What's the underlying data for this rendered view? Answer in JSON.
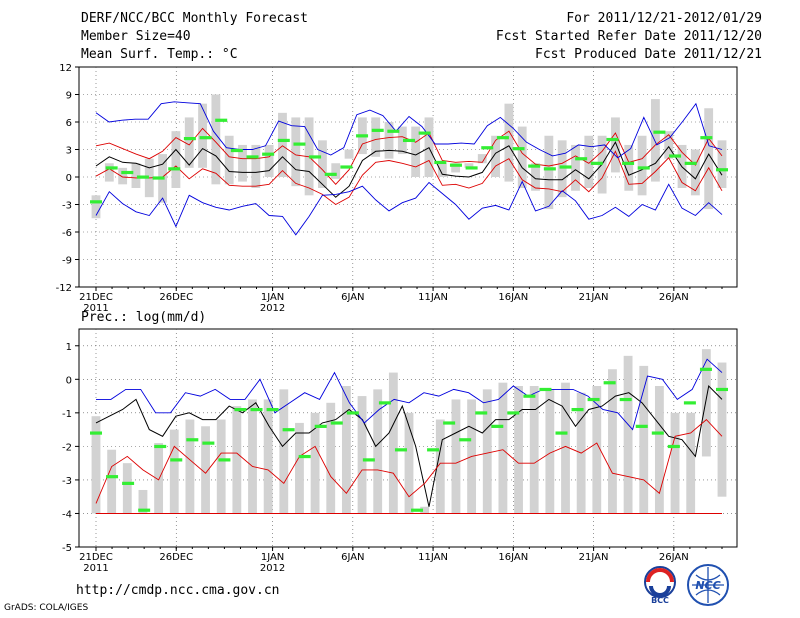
{
  "header": {
    "left_line1": "DERF/NCC/BCC Monthly Forecast",
    "left_line2": "Member Size=40",
    "left_line3": "Mean Surf. Temp.: °C",
    "right_line1": "For 2011/12/21-2012/01/29",
    "right_line2": "Fcst Started Refer Date 2011/12/20",
    "right_line3": "Fcst Produced Date 2011/12/21"
  },
  "panel2_title": "Prec.: log(mm/d)",
  "footer": {
    "url": "http://cmdp.ncc.cma.gov.cn",
    "credit": "GrADS: COLA/IGES"
  },
  "logos": {
    "bcc": "BCC",
    "ncc": "NCC"
  },
  "colors": {
    "box": "#d2d2d2",
    "median": "#33ee33",
    "mean": "#000000",
    "inner": "#dd0000",
    "outer": "#0000dd",
    "grid": "#555555"
  },
  "chart_data": [
    {
      "type": "line",
      "title": "Mean Surf. Temp.: °C",
      "ylim": [
        -12,
        12
      ],
      "yticks": [
        "12",
        "9",
        "6",
        "3",
        "0",
        "-3",
        "-6",
        "-9",
        "-12"
      ],
      "xticks": [
        {
          "label": "21DEC",
          "sub": "2011",
          "day": 0
        },
        {
          "label": "26DEC",
          "sub": "",
          "day": 5
        },
        {
          "label": "1JAN",
          "sub": "2012",
          "day": 11
        },
        {
          "label": "6JAN",
          "sub": "",
          "day": 16
        },
        {
          "label": "11JAN",
          "sub": "",
          "day": 21
        },
        {
          "label": "16JAN",
          "sub": "",
          "day": 26
        },
        {
          "label": "21JAN",
          "sub": "",
          "day": 31
        },
        {
          "label": "26JAN",
          "sub": "",
          "day": 36
        }
      ],
      "days": 40,
      "box_low": [
        -4.5,
        -0.5,
        -0.8,
        -1.2,
        -2.2,
        -2.8,
        -1.2,
        1.0,
        1.0,
        -0.8,
        -0.8,
        -0.5,
        -1.2,
        0.0,
        0.0,
        -1.0,
        -2.0,
        -1.2,
        -0.2,
        2.0,
        2.5,
        2.2,
        2.0,
        2.5,
        0.0,
        0.0,
        0.0,
        0.5,
        1.0,
        1.5,
        0.0,
        -0.5,
        -1.2,
        -1.5,
        -3.5,
        -2.2,
        -1.5,
        -1.2,
        -1.8,
        0.5,
        -1.5,
        -2.0,
        -0.5,
        2.0,
        -1.2,
        -2.0,
        -3.5,
        -1.2
      ],
      "box_high": [
        -2.0,
        1.5,
        1.0,
        1.5,
        2.0,
        2.5,
        5.0,
        6.5,
        8.0,
        9.0,
        4.5,
        3.5,
        3.5,
        3.5,
        7.0,
        6.5,
        6.5,
        4.0,
        1.5,
        3.0,
        6.5,
        6.5,
        6.0,
        5.5,
        5.5,
        6.5,
        1.5,
        1.5,
        1.5,
        2.5,
        4.5,
        8.0,
        5.5,
        1.5,
        4.5,
        4.0,
        3.5,
        4.5,
        4.5,
        6.5,
        3.5,
        4.5,
        8.5,
        5.0,
        3.5,
        3.0,
        7.5,
        4.0
      ],
      "series": [
        {
          "name": "median",
          "values": [
            -2.7,
            1.0,
            0.5,
            0.0,
            -0.1,
            0.9,
            4.2,
            4.3,
            6.2,
            2.9,
            2.2,
            2.5,
            4.0,
            3.6,
            2.2,
            0.3,
            1.1,
            4.5,
            5.1,
            5.0,
            4.0,
            4.8,
            1.6,
            1.3,
            1.0,
            3.2,
            4.3,
            3.1,
            1.2,
            0.9,
            1.1,
            2.0,
            1.5,
            4.1,
            1.5,
            1.0,
            4.9,
            2.3,
            1.5,
            4.3,
            0.8
          ]
        },
        {
          "name": "mean",
          "values": [
            1.2,
            2.2,
            1.6,
            1.5,
            1.0,
            1.4,
            3.0,
            1.3,
            3.1,
            2.3,
            0.6,
            0.5,
            0.5,
            0.7,
            2.2,
            0.8,
            0.6,
            -0.8,
            -2.2,
            -1.0,
            1.8,
            2.8,
            2.9,
            2.8,
            2.4,
            3.2,
            0.3,
            0.1,
            0.0,
            0.5,
            2.6,
            3.4,
            1.0,
            -0.2,
            -0.3,
            -0.3,
            0.8,
            -0.2,
            1.4,
            3.8,
            0.2,
            0.8,
            1.5,
            3.3,
            1.1,
            -0.2,
            2.5,
            0.2
          ]
        },
        {
          "name": "inner_upper",
          "values": [
            3.4,
            3.7,
            3.1,
            2.5,
            2.0,
            2.8,
            4.3,
            3.5,
            5.3,
            3.8,
            2.2,
            2.0,
            2.0,
            2.2,
            3.4,
            2.4,
            2.2,
            0.8,
            -0.8,
            0.8,
            3.6,
            4.1,
            4.3,
            4.4,
            3.8,
            4.8,
            1.8,
            1.6,
            1.7,
            1.6,
            4.0,
            5.0,
            2.6,
            1.4,
            1.2,
            1.5,
            2.3,
            1.5,
            2.8,
            4.8,
            1.6,
            2.0,
            3.5,
            4.6,
            2.7,
            1.3,
            4.2,
            2.3
          ]
        },
        {
          "name": "inner_lower",
          "values": [
            0.1,
            0.9,
            0.0,
            -0.1,
            -0.1,
            0.0,
            1.2,
            -0.2,
            0.9,
            0.4,
            -0.9,
            -1.0,
            -1.0,
            -0.8,
            0.7,
            -0.7,
            -1.2,
            -1.9,
            -3.0,
            -2.2,
            0.2,
            1.6,
            1.8,
            1.5,
            1.1,
            1.8,
            -0.9,
            -0.8,
            -1.2,
            -0.7,
            1.2,
            2.0,
            -0.3,
            -1.2,
            -1.3,
            -1.6,
            -0.3,
            -1.6,
            -0.1,
            2.8,
            -0.8,
            -0.7,
            0.6,
            2.1,
            -0.6,
            -1.5,
            1.0,
            -1.5
          ]
        },
        {
          "name": "outer_upper",
          "values": [
            7.0,
            6.0,
            6.2,
            6.3,
            6.3,
            8.0,
            8.2,
            8.1,
            8.0,
            5.0,
            3.2,
            3.0,
            3.0,
            3.4,
            6.1,
            5.6,
            5.5,
            3.0,
            2.4,
            3.2,
            6.8,
            7.3,
            6.7,
            5.0,
            6.6,
            5.5,
            3.6,
            3.6,
            3.7,
            3.6,
            5.6,
            6.5,
            5.3,
            3.8,
            3.0,
            2.3,
            2.6,
            3.5,
            3.3,
            3.5,
            2.1,
            3.1,
            6.5,
            3.5,
            4.3,
            6.1,
            8.0,
            3.4,
            3.0
          ]
        },
        {
          "name": "outer_lower",
          "values": [
            -4.2,
            -1.6,
            -2.9,
            -3.8,
            -4.2,
            -2.3,
            -5.4,
            -2.0,
            -2.8,
            -3.3,
            -3.6,
            -3.2,
            -2.9,
            -4.2,
            -4.3,
            -6.3,
            -4.3,
            -2.0,
            -1.9,
            -1.6,
            -1.0,
            -2.5,
            -3.7,
            -2.8,
            -2.3,
            -0.6,
            -1.8,
            -3.0,
            -4.6,
            -3.4,
            -3.1,
            -3.6,
            -0.5,
            -3.7,
            -3.2,
            -1.5,
            -2.6,
            -4.6,
            -4.2,
            -3.3,
            -4.3,
            -3.0,
            -3.6,
            -0.8,
            -3.4,
            -4.2,
            -2.8,
            -4.1
          ]
        }
      ]
    },
    {
      "type": "line",
      "title": "Prec.: log(mm/d)",
      "ylim": [
        -5,
        1.5
      ],
      "yticks": [
        "1",
        "0",
        "-1",
        "-2",
        "-3",
        "-4",
        "-5"
      ],
      "xticks": [
        {
          "label": "21DEC",
          "sub": "2011",
          "day": 0
        },
        {
          "label": "26DEC",
          "sub": "",
          "day": 5
        },
        {
          "label": "1JAN",
          "sub": "2012",
          "day": 11
        },
        {
          "label": "6JAN",
          "sub": "",
          "day": 16
        },
        {
          "label": "11JAN",
          "sub": "",
          "day": 21
        },
        {
          "label": "16JAN",
          "sub": "",
          "day": 26
        },
        {
          "label": "21JAN",
          "sub": "",
          "day": 31
        },
        {
          "label": "26JAN",
          "sub": "",
          "day": 36
        }
      ],
      "days": 40,
      "box_low": [
        -4,
        -4,
        -4,
        -4,
        -4,
        -4,
        -4,
        -4,
        -4,
        -4,
        -4,
        -4,
        -4,
        -4,
        -4,
        -4,
        -4,
        -4,
        -4,
        -4,
        -4,
        -4,
        -4,
        -4,
        -4,
        -4,
        -4,
        -4,
        -4,
        -4,
        -4,
        -4,
        -4,
        -4,
        -4,
        -4,
        -4,
        -4,
        -4,
        -2.3,
        -3.5
      ],
      "box_high": [
        -1.1,
        -2.1,
        -2.5,
        -3.3,
        -1.9,
        -1.5,
        -1.2,
        -1.4,
        -1.2,
        -0.8,
        -0.6,
        -0.6,
        -0.3,
        -1.3,
        -1.0,
        -0.7,
        -0.2,
        -0.5,
        -0.3,
        0.2,
        -1.0,
        -3.8,
        -1.2,
        -0.6,
        -0.6,
        -0.3,
        -0.1,
        -0.2,
        -0.2,
        -0.3,
        -0.1,
        -0.4,
        -0.2,
        0.3,
        0.7,
        0.4,
        -0.2,
        -1.0,
        -1.0,
        0.9,
        0.5
      ],
      "series": [
        {
          "name": "median",
          "values": [
            -1.6,
            -2.9,
            -3.1,
            -3.9,
            -2.0,
            -2.4,
            -1.8,
            -1.9,
            -2.4,
            -0.9,
            -0.9,
            -0.9,
            -1.5,
            -2.3,
            -1.4,
            -1.3,
            -1.0,
            -2.4,
            -0.7,
            -2.1,
            -3.9,
            -2.1,
            -1.3,
            -1.8,
            -1.0,
            -1.4,
            -1.0,
            -0.5,
            -0.3,
            -1.6,
            -0.9,
            -0.6,
            -0.1,
            -0.6,
            -1.4,
            -1.6,
            -2.0,
            -0.7,
            0.3,
            -0.3
          ]
        },
        {
          "name": "mean",
          "values": [
            -1.3,
            -1.1,
            -0.9,
            -0.6,
            -1.5,
            -1.7,
            -1.1,
            -1.0,
            -1.2,
            -1.2,
            -0.8,
            -1.0,
            -0.7,
            -1.4,
            -2.0,
            -1.6,
            -1.6,
            -1.3,
            -1.2,
            -0.9,
            -1.2,
            -2.0,
            -1.6,
            -0.8,
            -2.0,
            -3.8,
            -1.8,
            -1.6,
            -1.4,
            -1.6,
            -1.2,
            -1.2,
            -0.9,
            -0.9,
            -0.6,
            -0.8,
            -1.4,
            -0.9,
            -0.8,
            -0.5,
            -0.4,
            -0.7,
            -1.2,
            -1.7,
            -1.8,
            -2.3,
            -0.2,
            -0.6
          ]
        },
        {
          "name": "inner_lower",
          "values": [
            -3.7,
            -2.6,
            -2.3,
            -2.7,
            -3.0,
            -2.0,
            -2.4,
            -2.8,
            -2.2,
            -2.2,
            -2.6,
            -2.7,
            -3.1,
            -2.3,
            -2.0,
            -2.9,
            -3.4,
            -2.7,
            -2.7,
            -2.8,
            -3.5,
            -3.1,
            -2.5,
            -2.5,
            -2.3,
            -2.2,
            -2.1,
            -2.5,
            -2.5,
            -2.2,
            -2.0,
            -2.2,
            -1.9,
            -2.8,
            -2.9,
            -3.0,
            -3.4,
            -1.7,
            -1.6,
            -1.2,
            -1.7
          ]
        },
        {
          "name": "outer_upper",
          "values": [
            -0.6,
            -0.6,
            -0.3,
            -0.3,
            -1.0,
            -1.0,
            -0.4,
            -0.5,
            -0.3,
            -0.6,
            -0.6,
            0.0,
            -1.0,
            -0.7,
            -0.4,
            -0.6,
            0.2,
            -0.7,
            -1.3,
            -0.9,
            -0.6,
            -0.7,
            -0.4,
            -0.5,
            -0.3,
            -0.4,
            -0.7,
            -0.6,
            -0.2,
            -0.5,
            -0.3,
            -0.3,
            -0.3,
            -0.5,
            -0.9,
            -1.0,
            -1.5,
            0.1,
            0.0,
            -0.6,
            -0.3,
            0.6,
            0.2
          ]
        },
        {
          "name": "floor",
          "values": [
            -4,
            -4,
            -4,
            -4,
            -4,
            -4,
            -4,
            -4,
            -4,
            -4,
            -4,
            -4,
            -4,
            -4,
            -4,
            -4,
            -4,
            -4,
            -4,
            -4,
            -4,
            -4,
            -4,
            -4,
            -4,
            -4,
            -4,
            -4,
            -4,
            -4,
            -4,
            -4,
            -4,
            -4,
            -4,
            -4,
            -4,
            -4,
            -4,
            -4,
            -4
          ]
        }
      ]
    }
  ]
}
